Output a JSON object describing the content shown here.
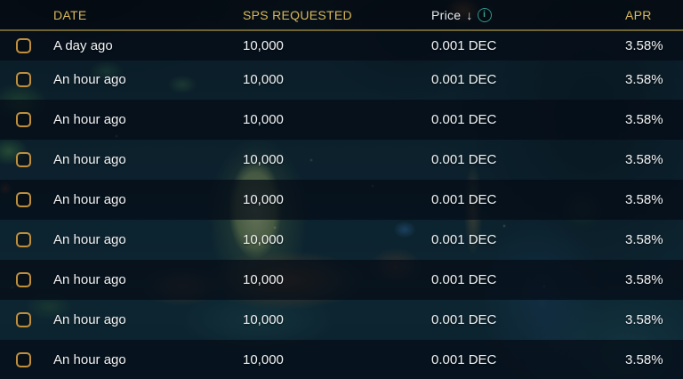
{
  "table": {
    "columns": {
      "select": "",
      "date": "DATE",
      "sps_requested": "SPS REQUESTED",
      "price": "Price",
      "apr": "APR"
    },
    "sort_arrow": "↓",
    "info_icon_glyph": "i",
    "rows": [
      {
        "date": "A day ago",
        "sps_requested": "10,000",
        "price": "0.001 DEC",
        "apr": "3.58%"
      },
      {
        "date": "An hour ago",
        "sps_requested": "10,000",
        "price": "0.001 DEC",
        "apr": "3.58%"
      },
      {
        "date": "An hour ago",
        "sps_requested": "10,000",
        "price": "0.001 DEC",
        "apr": "3.58%"
      },
      {
        "date": "An hour ago",
        "sps_requested": "10,000",
        "price": "0.001 DEC",
        "apr": "3.58%"
      },
      {
        "date": "An hour ago",
        "sps_requested": "10,000",
        "price": "0.001 DEC",
        "apr": "3.58%"
      },
      {
        "date": "An hour ago",
        "sps_requested": "10,000",
        "price": "0.001 DEC",
        "apr": "3.58%"
      },
      {
        "date": "An hour ago",
        "sps_requested": "10,000",
        "price": "0.001 DEC",
        "apr": "3.58%"
      },
      {
        "date": "An hour ago",
        "sps_requested": "10,000",
        "price": "0.001 DEC",
        "apr": "3.58%"
      },
      {
        "date": "An hour ago",
        "sps_requested": "10,000",
        "price": "0.001 DEC",
        "apr": "3.58%"
      }
    ]
  },
  "colors": {
    "header_text": "#d9b85c",
    "header_underline": "#6e6333",
    "row_text": "#f3f4f5",
    "checkbox_border": "#c08f3e",
    "info_icon": "#3aa69e",
    "row_dark_overlay": "rgba(6,15,26,0.84)",
    "row_light_overlay": "rgba(14,40,52,0.42)"
  }
}
